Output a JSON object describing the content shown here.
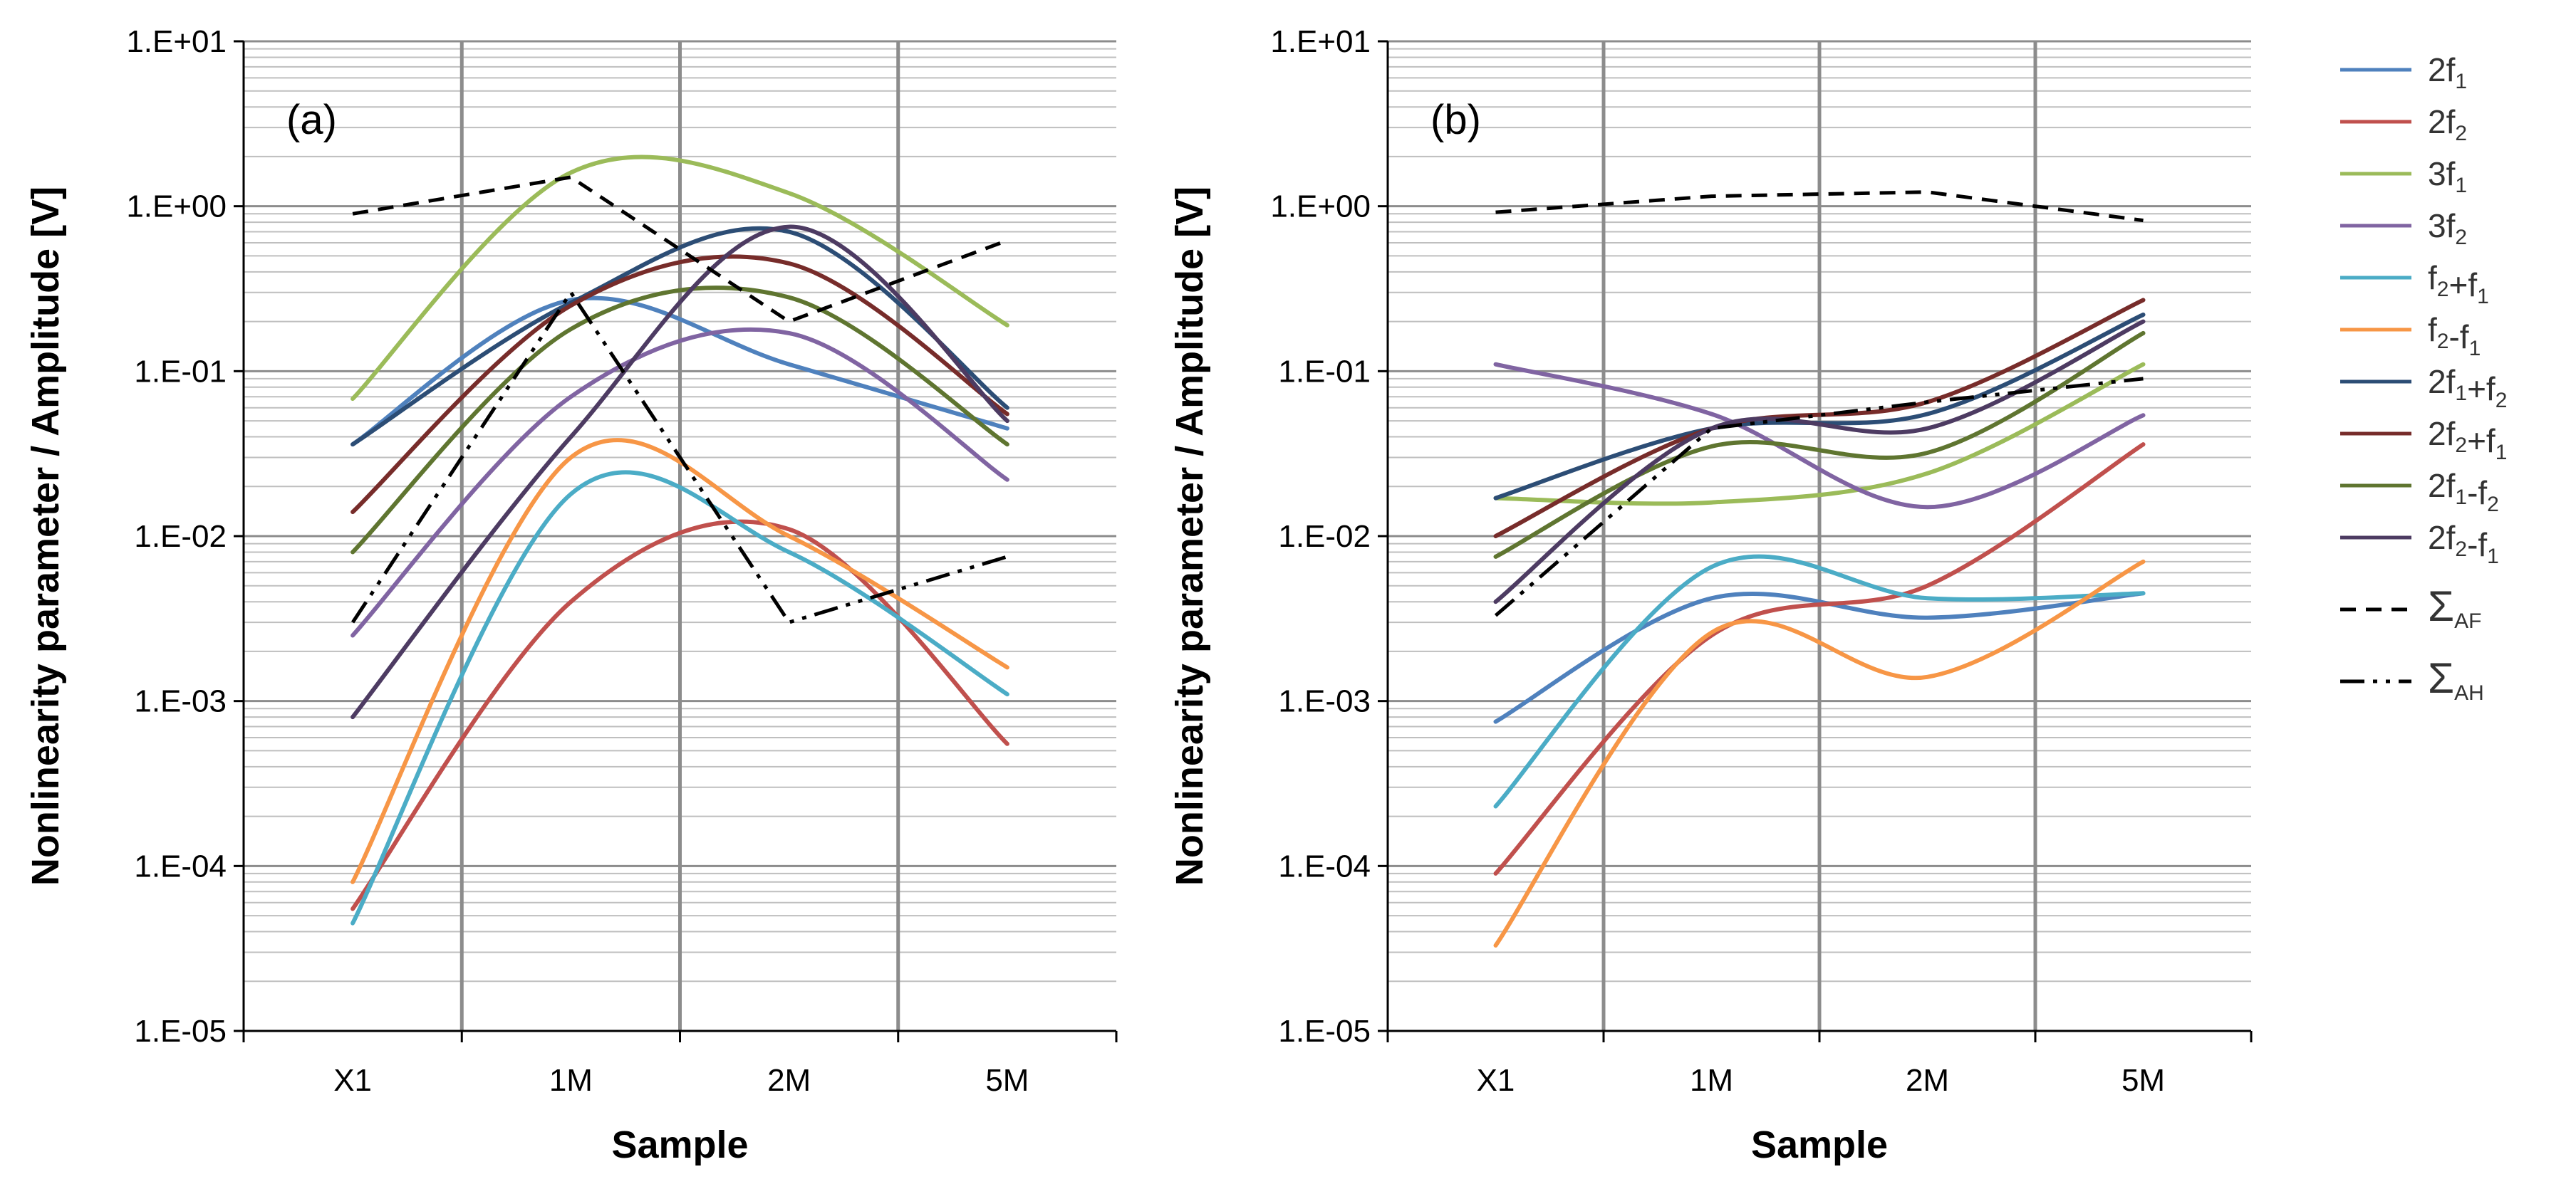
{
  "chart_data": [
    {
      "panel": "(a)",
      "type": "line",
      "xscale": "categorical",
      "yscale": "log",
      "categories": [
        "X1",
        "1M",
        "2M",
        "5M"
      ],
      "xlabel": "Sample",
      "ylabel": "Nonlinearity parameter / Amplitude [V]",
      "ylim": [
        1e-05,
        10
      ],
      "ytick_labels": [
        "1.E-05",
        "1.E-04",
        "1.E-03",
        "1.E-02",
        "1.E-01",
        "1.E+00",
        "1.E+01"
      ],
      "grid": true,
      "series": [
        {
          "key": "2f1",
          "values": [
            0.036,
            0.27,
            0.11,
            0.045
          ]
        },
        {
          "key": "2f2",
          "values": [
            5.5e-05,
            0.004,
            0.011,
            0.00055
          ]
        },
        {
          "key": "3f1",
          "values": [
            0.068,
            1.6,
            1.2,
            0.19
          ]
        },
        {
          "key": "3f2",
          "values": [
            0.0025,
            0.07,
            0.17,
            0.022
          ]
        },
        {
          "key": "f2pf1",
          "values": [
            4.5e-05,
            0.018,
            0.008,
            0.0011
          ]
        },
        {
          "key": "f2mf1",
          "values": [
            8e-05,
            0.03,
            0.01,
            0.0016
          ]
        },
        {
          "key": "2f1pf2",
          "values": [
            0.036,
            0.26,
            0.7,
            0.06
          ]
        },
        {
          "key": "2f2pf1",
          "values": [
            0.014,
            0.25,
            0.45,
            0.055
          ]
        },
        {
          "key": "2f1mf2",
          "values": [
            0.008,
            0.18,
            0.28,
            0.036
          ]
        },
        {
          "key": "2f2mf1",
          "values": [
            0.0008,
            0.04,
            0.75,
            0.05
          ]
        },
        {
          "key": "sum_af",
          "values": [
            0.9,
            1.5,
            0.2,
            0.62
          ]
        },
        {
          "key": "sum_ah",
          "values": [
            0.003,
            0.3,
            0.003,
            0.0075
          ]
        }
      ]
    },
    {
      "panel": "(b)",
      "type": "line",
      "xscale": "categorical",
      "yscale": "log",
      "categories": [
        "X1",
        "1M",
        "2M",
        "5M"
      ],
      "xlabel": "Sample",
      "ylabel": "Nonlinearity parameter / Amplitude [V]",
      "ylim": [
        1e-05,
        10
      ],
      "ytick_labels": [
        "1.E-05",
        "1.E-04",
        "1.E-03",
        "1.E-02",
        "1.E-01",
        "1.E+00",
        "1.E+01"
      ],
      "grid": true,
      "series": [
        {
          "key": "2f1",
          "values": [
            0.00075,
            0.0042,
            0.0032,
            0.0045
          ]
        },
        {
          "key": "2f2",
          "values": [
            9e-05,
            0.0025,
            0.005,
            0.036
          ]
        },
        {
          "key": "3f1",
          "values": [
            0.017,
            0.016,
            0.024,
            0.11
          ]
        },
        {
          "key": "3f2",
          "values": [
            0.11,
            0.055,
            0.015,
            0.054
          ]
        },
        {
          "key": "f2pf1",
          "values": [
            0.00023,
            0.0065,
            0.0042,
            0.0045
          ]
        },
        {
          "key": "f2mf1",
          "values": [
            3.3e-05,
            0.0026,
            0.0014,
            0.007
          ]
        },
        {
          "key": "2f1pf2",
          "values": [
            0.017,
            0.045,
            0.055,
            0.22
          ]
        },
        {
          "key": "2f2pf1",
          "values": [
            0.01,
            0.045,
            0.065,
            0.27
          ]
        },
        {
          "key": "2f1mf2",
          "values": [
            0.0075,
            0.035,
            0.032,
            0.17
          ]
        },
        {
          "key": "2f2mf1",
          "values": [
            0.004,
            0.045,
            0.045,
            0.2
          ]
        },
        {
          "key": "sum_af",
          "values": [
            0.92,
            1.15,
            1.22,
            0.82
          ]
        },
        {
          "key": "sum_ah",
          "values": [
            0.0033,
            0.045,
            0.065,
            0.09
          ]
        }
      ]
    }
  ],
  "legend": {
    "placement": "right",
    "entries": [
      {
        "key": "2f1",
        "base": "2f",
        "sub": "1",
        "color": "#4F81BD",
        "dash": "solid"
      },
      {
        "key": "2f2",
        "base": "2f",
        "sub": "2",
        "color": "#C0504D",
        "dash": "solid"
      },
      {
        "key": "3f1",
        "base": "3f",
        "sub": "1",
        "color": "#9BBB59",
        "dash": "solid"
      },
      {
        "key": "3f2",
        "base": "3f",
        "sub": "2",
        "color": "#8064A2",
        "dash": "solid"
      },
      {
        "key": "f2pf1",
        "parts": [
          [
            "f",
            "2"
          ],
          [
            "+f",
            "1"
          ]
        ],
        "color": "#4BACC6",
        "dash": "solid"
      },
      {
        "key": "f2mf1",
        "parts": [
          [
            "f",
            "2"
          ],
          [
            "-f",
            "1"
          ]
        ],
        "color": "#F79646",
        "dash": "solid"
      },
      {
        "key": "2f1pf2",
        "parts": [
          [
            "2f",
            "1"
          ],
          [
            "+f",
            "2"
          ]
        ],
        "color": "#2C4D75",
        "dash": "solid"
      },
      {
        "key": "2f2pf1",
        "parts": [
          [
            "2f",
            "2"
          ],
          [
            "+f",
            "1"
          ]
        ],
        "color": "#772C2A",
        "dash": "solid"
      },
      {
        "key": "2f1mf2",
        "parts": [
          [
            "2f",
            "1"
          ],
          [
            "-f",
            "2"
          ]
        ],
        "color": "#5F7530",
        "dash": "solid"
      },
      {
        "key": "2f2mf1",
        "parts": [
          [
            "2f",
            "2"
          ],
          [
            "-f",
            "1"
          ]
        ],
        "color": "#4D3B62",
        "dash": "solid"
      },
      {
        "key": "sum_af",
        "base": "Σ",
        "sub": "AF",
        "color": "#000000",
        "dash": "dash"
      },
      {
        "key": "sum_ah",
        "base": "Σ",
        "sub": "AH",
        "color": "#000000",
        "dash": "dashdotdot"
      }
    ]
  }
}
